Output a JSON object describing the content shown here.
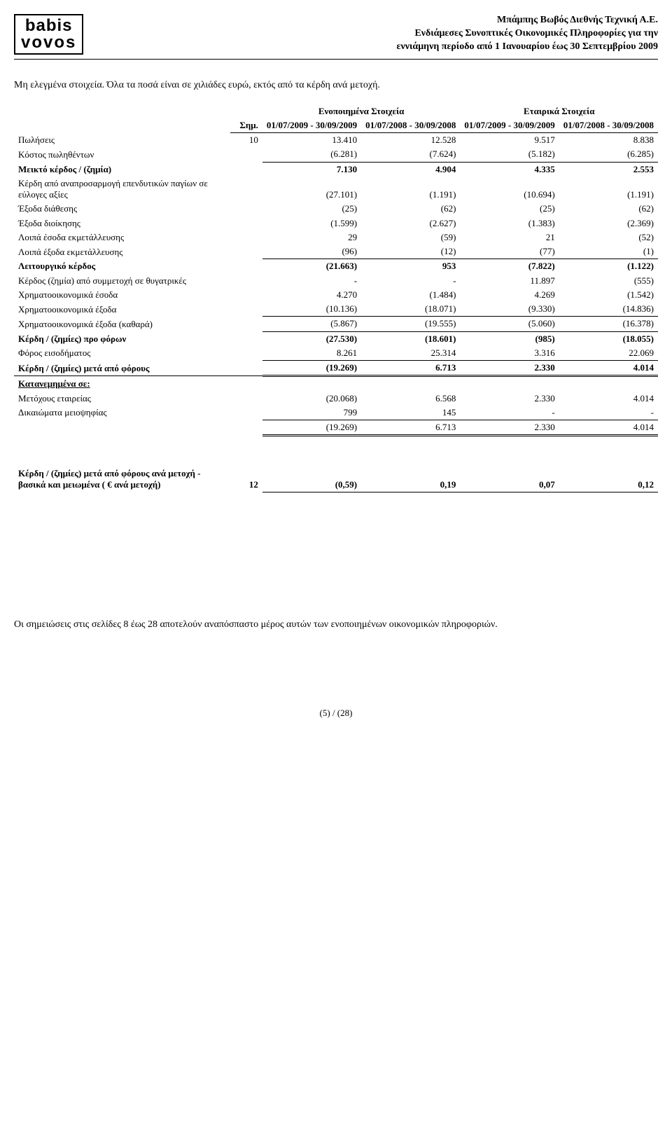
{
  "header": {
    "company": "Μπάμπης Βωβός Διεθνής Τεχνική Α.Ε.",
    "line2": "Ενδιάμεσες Συνοπτικές Οικονομικές Πληροφορίες για την",
    "line3": "εννιάμηνη περίοδο από 1 Ιανουαρίου έως 30 Σεπτεμβρίου 2009",
    "logo1": "babis",
    "logo2": "vovos"
  },
  "intro": "Μη ελεγμένα στοιχεία. Όλα τα ποσά είναι σε χιλιάδες ευρώ, εκτός από τα κέρδη ανά μετοχή.",
  "note_col": "Σημ.",
  "group_headers": {
    "cons": "Ενοποιημένα Στοιχεία",
    "co": "Εταιρικά Στοιχεία"
  },
  "periods": {
    "p1": "01/07/2009 - 30/09/2009",
    "p2": "01/07/2008 - 30/09/2008",
    "p3": "01/07/2009 - 30/09/2009",
    "p4": "01/07/2008 - 30/09/2008"
  },
  "rows": {
    "sales": {
      "label": "Πωλήσεις",
      "note": "10",
      "v": [
        "13.410",
        "12.528",
        "9.517",
        "8.838"
      ],
      "u": false,
      "uu": false,
      "bold": false
    },
    "cogs": {
      "label": "Κόστος πωληθέντων",
      "note": "",
      "v": [
        "(6.281)",
        "(7.624)",
        "(5.182)",
        "(6.285)"
      ],
      "u": true,
      "uu": false,
      "bold": false
    },
    "gross": {
      "label": "Μεικτό κέρδος / (ζημία)",
      "note": "",
      "v": [
        "7.130",
        "4.904",
        "4.335",
        "2.553"
      ],
      "u": false,
      "uu": false,
      "bold": true
    },
    "reval": {
      "label": "Κέρδη από αναπροσαρμογή επενδυτικών παγίων σε εύλογες αξίες",
      "note": "",
      "v": [
        "(27.101)",
        "(1.191)",
        "(10.694)",
        "(1.191)"
      ],
      "u": false,
      "uu": false,
      "bold": false
    },
    "dist": {
      "label": "Έξοδα διάθεσης",
      "note": "",
      "v": [
        "(25)",
        "(62)",
        "(25)",
        "(62)"
      ],
      "u": false,
      "uu": false,
      "bold": false
    },
    "admin": {
      "label": "Έξοδα διοίκησης",
      "note": "",
      "v": [
        "(1.599)",
        "(2.627)",
        "(1.383)",
        "(2.369)"
      ],
      "u": false,
      "uu": false,
      "bold": false
    },
    "othinc": {
      "label": "Λοιπά έσοδα εκμετάλλευσης",
      "note": "",
      "v": [
        "29",
        "(59)",
        "21",
        "(52)"
      ],
      "u": false,
      "uu": false,
      "bold": false
    },
    "othexp": {
      "label": "Λοιπά έξοδα εκμετάλλευσης",
      "note": "",
      "v": [
        "(96)",
        "(12)",
        "(77)",
        "(1)"
      ],
      "u": true,
      "uu": false,
      "bold": false
    },
    "op": {
      "label": "Λειτουργικό κέρδος",
      "note": "",
      "v": [
        "(21.663)",
        "953",
        "(7.822)",
        "(1.122)"
      ],
      "u": false,
      "uu": false,
      "bold": true
    },
    "subs": {
      "label": "Κέρδος (ζημία) από συμμετοχή σε θυγατρικές",
      "note": "",
      "v": [
        "-",
        "-",
        "11.897",
        "(555)"
      ],
      "u": false,
      "uu": false,
      "bold": false
    },
    "fininc": {
      "label": "Χρηματοοικονομικά έσοδα",
      "note": "",
      "v": [
        "4.270",
        "(1.484)",
        "4.269",
        "(1.542)"
      ],
      "u": false,
      "uu": false,
      "bold": false
    },
    "finexp": {
      "label": "Χρηματοοικονομικά έξοδα",
      "note": "",
      "v": [
        "(10.136)",
        "(18.071)",
        "(9.330)",
        "(14.836)"
      ],
      "u": true,
      "uu": false,
      "bold": false
    },
    "finnet": {
      "label": "Χρηματοοικονομικά έξοδα (καθαρά)",
      "note": "",
      "v": [
        "(5.867)",
        "(19.555)",
        "(5.060)",
        "(16.378)"
      ],
      "u": true,
      "uu": false,
      "bold": false
    },
    "pbt": {
      "label": "Κέρδη / (ζημίες) προ φόρων",
      "note": "",
      "v": [
        "(27.530)",
        "(18.601)",
        "(985)",
        "(18.055)"
      ],
      "u": false,
      "uu": false,
      "bold": true
    },
    "tax": {
      "label": "Φόρος εισοδήματος",
      "note": "",
      "v": [
        "8.261",
        "25.314",
        "3.316",
        "22.069"
      ],
      "u": true,
      "uu": false,
      "bold": false
    },
    "pat": {
      "label": "Κέρδη / (ζημίες) μετά από  φόρους",
      "note": "",
      "v": [
        "(19.269)",
        "6.713",
        "2.330",
        "4.014"
      ],
      "u": false,
      "uu": true,
      "bold": true
    }
  },
  "alloc": {
    "title": "Κατανεμημένα σε:",
    "owners": {
      "label": "Μετόχους εταιρείας",
      "v": [
        "(20.068)",
        "6.568",
        "2.330",
        "4.014"
      ],
      "u": false
    },
    "minority": {
      "label": "Δικαιώματα μειοψηφίας",
      "v": [
        "799",
        "145",
        "-",
        "-"
      ],
      "u": true
    },
    "total": {
      "label": "",
      "v": [
        "(19.269)",
        "6.713",
        "2.330",
        "4.014"
      ],
      "uu": true
    }
  },
  "eps": {
    "label": "Κέρδη / (ζημίες) μετά από φόρους ανά μετοχή - βασικά και μειωμένα ( € ανά μετοχή)",
    "note": "12",
    "v": [
      "(0,59)",
      "0,19",
      "0,07",
      "0,12"
    ]
  },
  "notes_text": "Οι σημειώσεις στις σελίδες 8 έως 28 αποτελούν αναπόσπαστο μέρος αυτών των ενοποιημένων οικονομικών πληροφοριών.",
  "footer": "(5) / (28)"
}
